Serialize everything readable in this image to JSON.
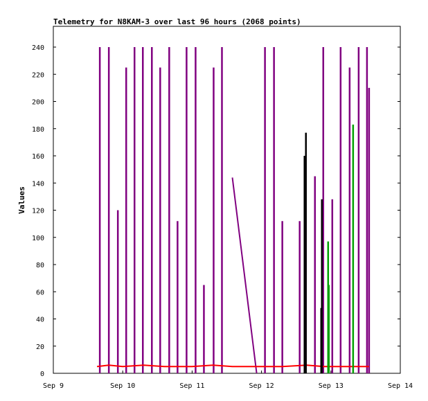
{
  "chart_data": {
    "type": "line",
    "title": "Telemetry for N8KAM-3 over last 96 hours (2068 points)",
    "xlabel": "",
    "ylabel": "Values",
    "x_unit": "days since Sep 9 00:00",
    "xlim": [
      0,
      5
    ],
    "ylim": [
      0,
      255
    ],
    "x_ticks": [
      "Sep 9",
      "Sep 10",
      "Sep 11",
      "Sep 12",
      "Sep 13",
      "Sep 14"
    ],
    "y_ticks": [
      0,
      20,
      40,
      60,
      80,
      100,
      120,
      140,
      160,
      180,
      200,
      220,
      240
    ],
    "legend": "none",
    "grid": false,
    "colors": {
      "purple": "#800080",
      "red": "#ff0000",
      "black": "#000000",
      "green": "#00a000"
    },
    "series": [
      {
        "color": "#800080",
        "spikes": [
          {
            "x": 0.67,
            "y": 240
          },
          {
            "x": 0.8,
            "y": 240
          },
          {
            "x": 0.93,
            "y": 120
          },
          {
            "x": 1.05,
            "y": 225
          },
          {
            "x": 1.17,
            "y": 240
          },
          {
            "x": 1.29,
            "y": 240
          },
          {
            "x": 1.42,
            "y": 240
          },
          {
            "x": 1.54,
            "y": 225
          },
          {
            "x": 1.67,
            "y": 240
          },
          {
            "x": 1.79,
            "y": 112
          },
          {
            "x": 1.92,
            "y": 240
          },
          {
            "x": 2.05,
            "y": 240
          },
          {
            "x": 2.17,
            "y": 65
          },
          {
            "x": 2.31,
            "y": 225
          },
          {
            "x": 2.43,
            "y": 240
          },
          {
            "x": 3.05,
            "y": 240
          },
          {
            "x": 3.18,
            "y": 240
          },
          {
            "x": 3.3,
            "y": 112
          },
          {
            "x": 3.55,
            "y": 112
          },
          {
            "x": 3.77,
            "y": 145
          },
          {
            "x": 3.89,
            "y": 240
          },
          {
            "x": 4.02,
            "y": 128
          },
          {
            "x": 4.14,
            "y": 240
          },
          {
            "x": 4.27,
            "y": 225
          },
          {
            "x": 4.4,
            "y": 240
          },
          {
            "x": 4.52,
            "y": 240
          },
          {
            "x": 4.55,
            "y": 210
          }
        ],
        "diagonal": [
          [
            2.58,
            144
          ],
          [
            2.93,
            0
          ]
        ]
      },
      {
        "color": "#ff0000",
        "points": [
          [
            0.63,
            5
          ],
          [
            0.8,
            6
          ],
          [
            1.0,
            5
          ],
          [
            1.3,
            6
          ],
          [
            1.6,
            5
          ],
          [
            2.0,
            5
          ],
          [
            2.3,
            6
          ],
          [
            2.58,
            5
          ],
          [
            2.93,
            5
          ],
          [
            3.3,
            5
          ],
          [
            3.65,
            6
          ],
          [
            3.9,
            5
          ],
          [
            4.2,
            5
          ],
          [
            4.55,
            5
          ]
        ]
      },
      {
        "color": "#000000",
        "spikes": [
          {
            "x": 3.62,
            "y": 160
          },
          {
            "x": 3.64,
            "y": 177
          },
          {
            "x": 3.87,
            "y": 128
          },
          {
            "x": 3.86,
            "y": 48
          }
        ]
      },
      {
        "color": "#00a000",
        "spikes": [
          {
            "x": 3.96,
            "y": 97
          },
          {
            "x": 3.97,
            "y": 65
          },
          {
            "x": 4.32,
            "y": 183
          }
        ]
      }
    ]
  }
}
